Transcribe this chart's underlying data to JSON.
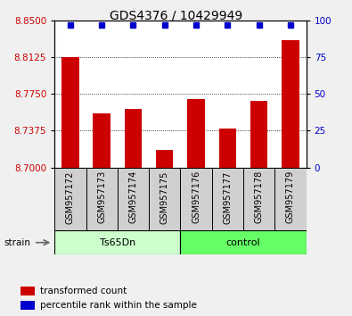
{
  "title": "GDS4376 / 10429949",
  "samples": [
    "GSM957172",
    "GSM957173",
    "GSM957174",
    "GSM957175",
    "GSM957176",
    "GSM957177",
    "GSM957178",
    "GSM957179"
  ],
  "bar_values": [
    8.8125,
    8.755,
    8.76,
    8.718,
    8.77,
    8.74,
    8.768,
    8.83
  ],
  "percentile_values": [
    97,
    97,
    97,
    97,
    97,
    97,
    97,
    97
  ],
  "ylim_left": [
    8.7,
    8.85
  ],
  "ylim_right": [
    0,
    100
  ],
  "yticks_left": [
    8.7,
    8.7375,
    8.775,
    8.8125,
    8.85
  ],
  "yticks_right": [
    0,
    25,
    50,
    75,
    100
  ],
  "bar_color": "#cc0000",
  "dot_color": "#0000cc",
  "bar_bottom": 8.7,
  "group1_label": "Ts65Dn",
  "group2_label": "control",
  "group1_color": "#ccffcc",
  "group2_color": "#66ff66",
  "strain_label": "strain",
  "legend_bar_label": "transformed count",
  "legend_dot_label": "percentile rank within the sample",
  "tick_color_left": "#cc0000",
  "tick_color_right": "#0000cc",
  "sample_bg_color": "#d0d0d0",
  "plot_bg_color": "#ffffff",
  "fig_bg_color": "#f0f0f0",
  "title_fontsize": 10,
  "label_fontsize": 7,
  "legend_fontsize": 7.5
}
